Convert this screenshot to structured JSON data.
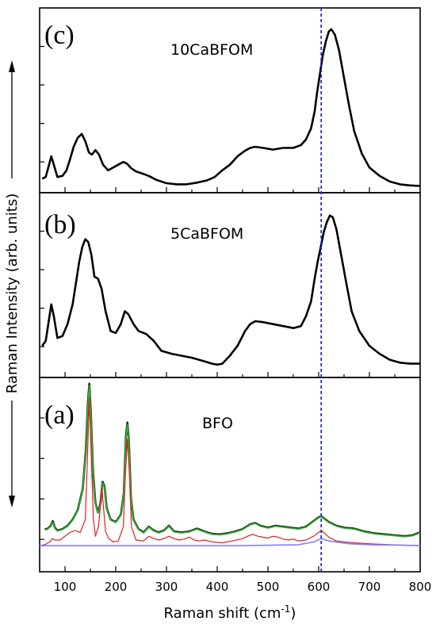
{
  "chart_data": {
    "type": "line",
    "xlabel": "Raman shift (cm",
    "xlabel_sup": "-1",
    "xlabel_close": ")",
    "ylabel": "Raman Intensity (arb. units)",
    "xlim": [
      50,
      800
    ],
    "xticks": [
      100,
      200,
      300,
      400,
      500,
      600,
      700,
      800
    ],
    "reference_line_x": 605,
    "reference_line_color": "#1f2fd6",
    "panels": [
      {
        "letter": "(c)",
        "sample": "10CaBFOM",
        "series": [
          {
            "color": "#000000",
            "x": [
              55,
              62,
              68,
              73,
              78,
              85,
              95,
              103,
              110,
              117,
              125,
              133,
              140,
              147,
              153,
              160,
              167,
              175,
              185,
              195,
              205,
              215,
              222,
              230,
              240,
              250,
              265,
              280,
              300,
              320,
              340,
              360,
              380,
              395,
              410,
              425,
              440,
              455,
              465,
              475,
              490,
              510,
              530,
              550,
              565,
              575,
              585,
              592,
              597,
              603,
              608,
              614,
              620,
              625,
              632,
              640,
              650,
              660,
              670,
              685,
              700,
              720,
              740,
              760,
              780,
              800
            ],
            "y": [
              0.15,
              0.18,
              0.38,
              0.55,
              0.4,
              0.18,
              0.2,
              0.3,
              0.5,
              0.72,
              0.88,
              0.95,
              0.82,
              0.62,
              0.58,
              0.66,
              0.58,
              0.4,
              0.3,
              0.35,
              0.4,
              0.45,
              0.42,
              0.34,
              0.28,
              0.25,
              0.2,
              0.13,
              0.07,
              0.05,
              0.05,
              0.08,
              0.12,
              0.18,
              0.3,
              0.4,
              0.55,
              0.65,
              0.7,
              0.72,
              0.7,
              0.67,
              0.7,
              0.7,
              0.75,
              0.85,
              1.05,
              1.35,
              1.7,
              2.05,
              2.35,
              2.6,
              2.78,
              2.82,
              2.72,
              2.45,
              1.95,
              1.45,
              1.0,
              0.6,
              0.35,
              0.2,
              0.1,
              0.05,
              0.03,
              0.02
            ]
          }
        ]
      },
      {
        "letter": "(b)",
        "sample": "5CaBFOM",
        "series": [
          {
            "color": "#000000",
            "x": [
              55,
              62,
              68,
              73,
              78,
              85,
              95,
              105,
              115,
              122,
              128,
              134,
              140,
              146,
              152,
              158,
              165,
              172,
              180,
              190,
              200,
              210,
              218,
              225,
              235,
              245,
              260,
              275,
              290,
              310,
              330,
              350,
              370,
              390,
              400,
              410,
              425,
              440,
              455,
              465,
              475,
              490,
              510,
              530,
              550,
              565,
              575,
              585,
              592,
              598,
              604,
              610,
              616,
              622,
              628,
              635,
              645,
              655,
              665,
              680,
              700,
              720,
              740,
              760,
              780,
              800
            ],
            "y": [
              0.2,
              0.25,
              0.45,
              0.62,
              0.5,
              0.28,
              0.3,
              0.42,
              0.62,
              0.85,
              1.05,
              1.2,
              1.28,
              1.25,
              1.12,
              0.9,
              0.88,
              0.78,
              0.55,
              0.35,
              0.33,
              0.42,
              0.55,
              0.52,
              0.42,
              0.35,
              0.32,
              0.25,
              0.15,
              0.12,
              0.1,
              0.08,
              0.05,
              0.02,
              0.01,
              0.02,
              0.1,
              0.2,
              0.35,
              0.42,
              0.45,
              0.44,
              0.42,
              0.4,
              0.38,
              0.4,
              0.5,
              0.65,
              0.88,
              1.05,
              1.2,
              1.35,
              1.45,
              1.52,
              1.5,
              1.38,
              1.1,
              0.82,
              0.55,
              0.35,
              0.2,
              0.12,
              0.06,
              0.03,
              0.02,
              0.02
            ]
          }
        ]
      },
      {
        "letter": "(a)",
        "sample": "BFO",
        "series": [
          {
            "color": "#1a1a1a",
            "x": [
              60,
              66,
              72,
              76,
              80,
              85,
              95,
              105,
              115,
              125,
              135,
              141,
              145,
              148,
              151,
              155,
              160,
              165,
              170,
              174,
              178,
              182,
              190,
              200,
              210,
              216,
              220,
              223,
              226,
              230,
              235,
              245,
              255,
              265,
              275,
              285,
              295,
              305,
              315,
              330,
              345,
              360,
              375,
              390,
              405,
              420,
              435,
              450,
              465,
              475,
              485,
              500,
              515,
              530,
              545,
              560,
              575,
              585,
              595,
              600,
              605,
              610,
              620,
              635,
              650,
              670,
              690,
              710,
              730,
              750,
              770,
              785,
              800
            ],
            "y": [
              0.34,
              0.36,
              0.42,
              0.52,
              0.38,
              0.32,
              0.35,
              0.42,
              0.55,
              0.75,
              1.2,
              2.0,
              3.0,
              3.42,
              2.8,
              1.6,
              0.9,
              0.7,
              0.9,
              1.35,
              1.25,
              0.8,
              0.55,
              0.5,
              0.65,
              1.1,
              2.3,
              2.6,
              2.2,
              1.0,
              0.55,
              0.35,
              0.28,
              0.4,
              0.32,
              0.28,
              0.32,
              0.42,
              0.3,
              0.28,
              0.3,
              0.36,
              0.3,
              0.25,
              0.24,
              0.26,
              0.3,
              0.35,
              0.45,
              0.48,
              0.42,
              0.38,
              0.42,
              0.4,
              0.38,
              0.36,
              0.4,
              0.48,
              0.56,
              0.6,
              0.62,
              0.58,
              0.5,
              0.42,
              0.38,
              0.36,
              0.3,
              0.26,
              0.24,
              0.22,
              0.2,
              0.22,
              0.28
            ]
          },
          {
            "color": "#2db82d",
            "x": [
              60,
              66,
              72,
              76,
              80,
              85,
              95,
              105,
              115,
              125,
              135,
              141,
              145,
              148,
              151,
              155,
              160,
              165,
              170,
              174,
              178,
              182,
              190,
              200,
              210,
              216,
              220,
              223,
              226,
              230,
              235,
              245,
              255,
              265,
              275,
              285,
              295,
              305,
              315,
              330,
              345,
              360,
              375,
              390,
              405,
              420,
              435,
              450,
              465,
              475,
              485,
              500,
              515,
              530,
              545,
              560,
              575,
              585,
              595,
              600,
              605,
              610,
              620,
              635,
              650,
              670,
              690,
              710,
              730,
              750,
              770,
              785,
              800
            ],
            "y": [
              0.33,
              0.35,
              0.41,
              0.5,
              0.37,
              0.31,
              0.34,
              0.41,
              0.54,
              0.74,
              1.19,
              1.98,
              2.97,
              3.38,
              2.77,
              1.58,
              0.89,
              0.69,
              0.89,
              1.33,
              1.23,
              0.79,
              0.54,
              0.49,
              0.64,
              1.08,
              2.27,
              2.56,
              2.17,
              0.99,
              0.54,
              0.34,
              0.27,
              0.39,
              0.31,
              0.27,
              0.31,
              0.41,
              0.29,
              0.27,
              0.29,
              0.35,
              0.29,
              0.24,
              0.23,
              0.25,
              0.29,
              0.34,
              0.44,
              0.47,
              0.41,
              0.37,
              0.41,
              0.39,
              0.37,
              0.35,
              0.39,
              0.47,
              0.55,
              0.59,
              0.61,
              0.57,
              0.49,
              0.41,
              0.37,
              0.35,
              0.29,
              0.25,
              0.23,
              0.21,
              0.19,
              0.21,
              0.27
            ]
          },
          {
            "color": "#e02020",
            "x": [
              50,
              60,
              70,
              75,
              80,
              90,
              100,
              110,
              120,
              130,
              140,
              144,
              148,
              152,
              156,
              160,
              166,
              170,
              173,
              176,
              180,
              186,
              195,
              205,
              215,
              219,
              223,
              227,
              231,
              240,
              255,
              265,
              275,
              285,
              295,
              305,
              315,
              325,
              335,
              345,
              355,
              365,
              375,
              390,
              410,
              430,
              450,
              460,
              470,
              480,
              490,
              500,
              510,
              520,
              530,
              540,
              550,
              560,
              575,
              590,
              600,
              605,
              610,
              620,
              635,
              650,
              670,
              700,
              740,
              800
            ],
            "y": [
              0.0,
              0.02,
              0.08,
              0.15,
              0.12,
              0.12,
              0.2,
              0.28,
              0.32,
              0.28,
              0.55,
              1.8,
              3.1,
              1.8,
              0.55,
              0.2,
              0.4,
              0.85,
              1.2,
              0.8,
              0.3,
              0.15,
              0.08,
              0.1,
              0.4,
              1.5,
              2.25,
              1.5,
              0.4,
              0.12,
              0.1,
              0.2,
              0.15,
              0.12,
              0.15,
              0.2,
              0.15,
              0.12,
              0.14,
              0.18,
              0.12,
              0.1,
              0.12,
              0.08,
              0.06,
              0.1,
              0.15,
              0.2,
              0.24,
              0.2,
              0.18,
              0.16,
              0.2,
              0.18,
              0.14,
              0.12,
              0.14,
              0.1,
              0.12,
              0.2,
              0.28,
              0.32,
              0.28,
              0.18,
              0.1,
              0.08,
              0.06,
              0.04,
              0.02,
              0.0
            ]
          },
          {
            "color": "#8080ff",
            "x": [
              50,
              150,
              300,
              450,
              560,
              590,
              605,
              620,
              660,
              700,
              760,
              800
            ],
            "y": [
              0.0,
              0.0,
              0.0,
              0.0,
              0.02,
              0.08,
              0.15,
              0.1,
              0.04,
              0.02,
              0.01,
              0.0
            ]
          }
        ]
      }
    ]
  }
}
